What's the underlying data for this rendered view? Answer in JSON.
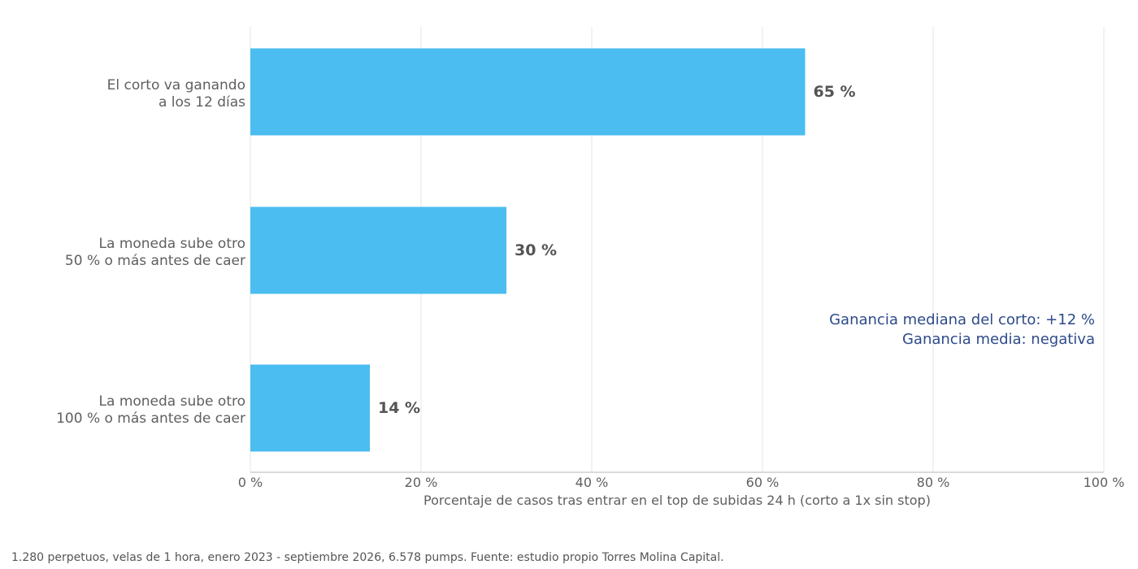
{
  "chart_data": {
    "type": "bar",
    "orientation": "horizontal",
    "categories": [
      [
        "El corto va ganando",
        "a los 12 días"
      ],
      [
        "La moneda sube otro",
        "50 % o más antes de caer"
      ],
      [
        "La moneda sube otro",
        "100 % o más antes de caer"
      ]
    ],
    "values": [
      65,
      30,
      14
    ],
    "value_labels": [
      "65 %",
      "30 %",
      "14 %"
    ],
    "xlabel": "Porcentaje de casos tras entrar en el top de subidas 24 h (corto a 1x sin stop)",
    "xlim": [
      0,
      100
    ],
    "xticks": [
      0,
      20,
      40,
      60,
      80,
      100
    ],
    "xtick_labels": [
      "0 %",
      "20 %",
      "40 %",
      "60 %",
      "80 %",
      "100 %"
    ],
    "grid": "vertical",
    "bar_color": "#4bbdf0",
    "annotation": [
      "Ganancia mediana del corto: +12 %",
      "Ganancia media: negativa"
    ],
    "annotation_color": "#2d4a8a"
  },
  "footnote": "1.280 perpetuos, velas de 1 hora, enero 2023 - septiembre 2026, 6.578 pumps. Fuente: estudio propio Torres Molina Capital."
}
